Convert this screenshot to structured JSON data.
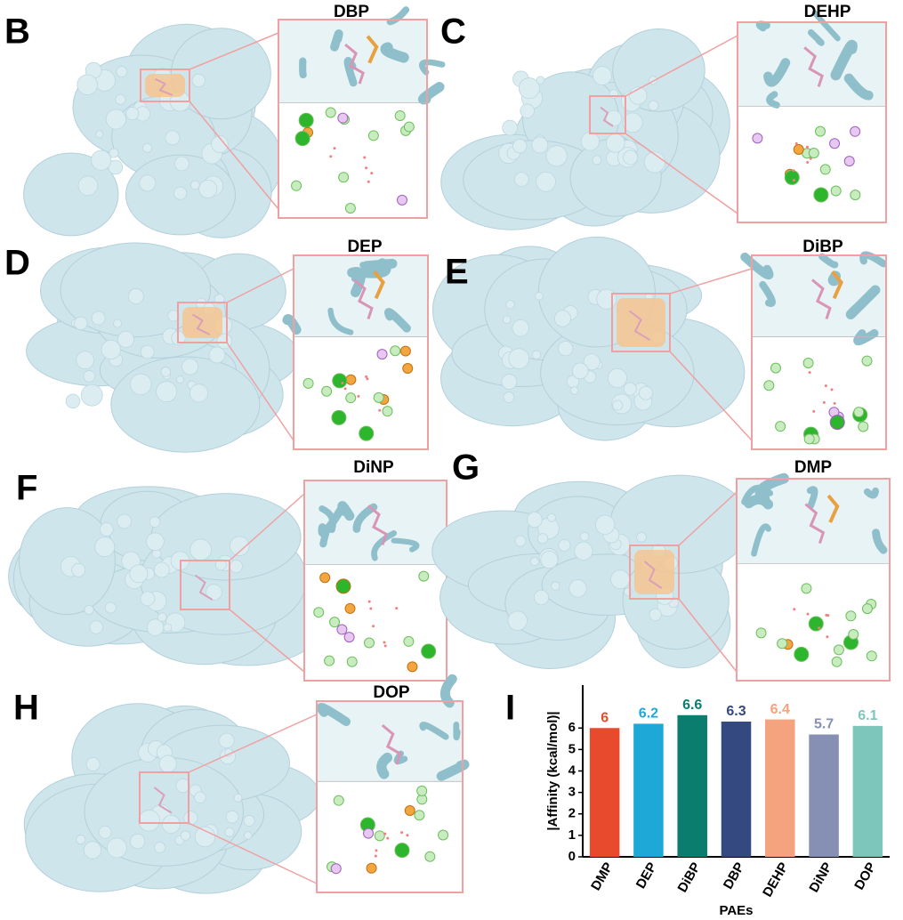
{
  "panels": [
    {
      "letter": "B",
      "title": "DBP"
    },
    {
      "letter": "C",
      "title": "DEHP"
    },
    {
      "letter": "D",
      "title": "DEP"
    },
    {
      "letter": "E",
      "title": "DiBP"
    },
    {
      "letter": "F",
      "title": "DiNP"
    },
    {
      "letter": "G",
      "title": "DMP"
    },
    {
      "letter": "H",
      "title": "DOP"
    },
    {
      "letter": "I"
    }
  ],
  "chart_data": {
    "type": "bar",
    "categories": [
      "DMP",
      "DEP",
      "DiBP",
      "DBP",
      "DEHP",
      "DiNP",
      "DOP"
    ],
    "values": [
      6,
      6.2,
      6.6,
      6.3,
      6.4,
      5.7,
      6.1
    ],
    "colors": [
      "#e84a2e",
      "#1ea8d8",
      "#0a7d6e",
      "#34497f",
      "#f5a27e",
      "#8690b5",
      "#7cc6bc"
    ],
    "xlabel": "PAEs",
    "ylabel": "|Affinity (kcal/mol)|",
    "ylim": [
      0,
      8
    ],
    "yticks": [
      0,
      1,
      2,
      3,
      4,
      5,
      6
    ],
    "grid": false
  }
}
